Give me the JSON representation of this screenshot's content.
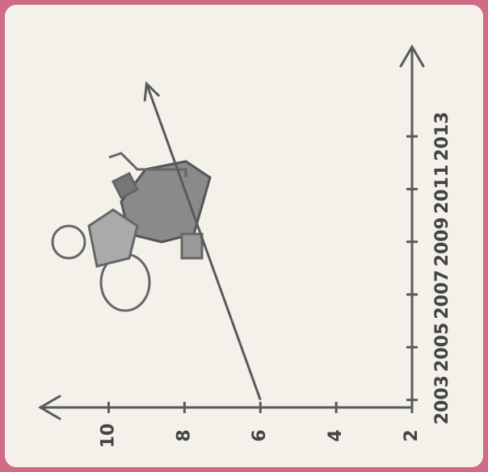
{
  "chart_data": {
    "type": "line",
    "x": [
      2003,
      2015
    ],
    "values": [
      6,
      9
    ],
    "color": "#5a5a5a",
    "xlim": [
      2002.5,
      2016.4
    ],
    "xticks": [
      2003,
      2005,
      2007,
      2009,
      2011,
      2013
    ],
    "ylim": [
      2,
      11.8
    ],
    "yticks": [
      2,
      4,
      6,
      8,
      10
    ]
  }
}
